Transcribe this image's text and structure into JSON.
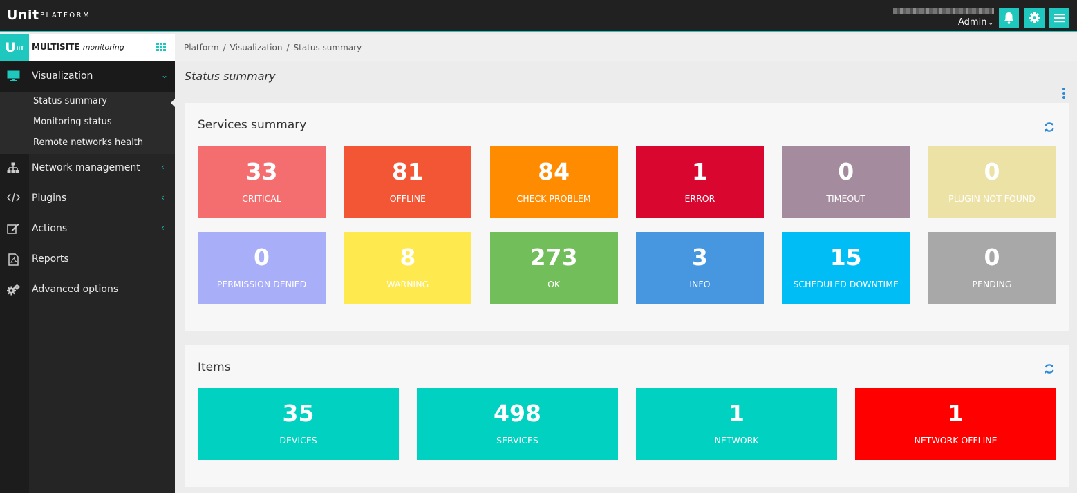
{
  "topbar": {
    "logo": "Unit",
    "logo_sub": "PLATFORM",
    "user_menu": "Admin",
    "colors": {
      "background": "#212121",
      "accent": "#1ec8be"
    }
  },
  "sidebar": {
    "brand_badge": "U",
    "brand_badge_sup": "iiT",
    "brand_name": "MULTISITE",
    "brand_suffix": "monitoring",
    "items": [
      {
        "label": "Visualization",
        "icon": "monitor-icon",
        "expanded": true
      },
      {
        "label": "Network management",
        "icon": "sitemap-icon"
      },
      {
        "label": "Plugins",
        "icon": "code-icon"
      },
      {
        "label": "Actions",
        "icon": "edit-icon"
      },
      {
        "label": "Reports",
        "icon": "pdf-file-icon"
      },
      {
        "label": "Advanced options",
        "icon": "gears-icon"
      }
    ],
    "submenu": [
      {
        "label": "Status summary",
        "active": true
      },
      {
        "label": "Monitoring status"
      },
      {
        "label": "Remote networks health"
      }
    ]
  },
  "breadcrumb": [
    "Platform",
    "Visualization",
    "Status summary"
  ],
  "page_title": "Status summary",
  "services": {
    "title": "Services summary",
    "tiles": [
      {
        "value": "33",
        "label": "CRITICAL",
        "color": "#f46d6f"
      },
      {
        "value": "81",
        "label": "OFFLINE",
        "color": "#f25634"
      },
      {
        "value": "84",
        "label": "CHECK PROBLEM",
        "color": "#ff8c00"
      },
      {
        "value": "1",
        "label": "ERROR",
        "color": "#d90630"
      },
      {
        "value": "0",
        "label": "TIMEOUT",
        "color": "#a58b9e"
      },
      {
        "value": "0",
        "label": "PLUGIN NOT FOUND",
        "color": "#ede2a6"
      },
      {
        "value": "0",
        "label": "PERMISSION DENIED",
        "color": "#a8aef8"
      },
      {
        "value": "8",
        "label": "WARNING",
        "color": "#fee94f"
      },
      {
        "value": "273",
        "label": "OK",
        "color": "#72be5a"
      },
      {
        "value": "3",
        "label": "INFO",
        "color": "#4797e0"
      },
      {
        "value": "15",
        "label": "SCHEDULED DOWNTIME",
        "color": "#00bdf6"
      },
      {
        "value": "0",
        "label": "PENDING",
        "color": "#a8a8a8"
      }
    ]
  },
  "items": {
    "title": "Items",
    "tiles": [
      {
        "value": "35",
        "label": "DEVICES",
        "color": "#00d1c0"
      },
      {
        "value": "498",
        "label": "SERVICES",
        "color": "#00d1c0"
      },
      {
        "value": "1",
        "label": "NETWORK",
        "color": "#00d1c0"
      },
      {
        "value": "1",
        "label": "NETWORK OFFLINE",
        "color": "#ff0000"
      }
    ]
  }
}
